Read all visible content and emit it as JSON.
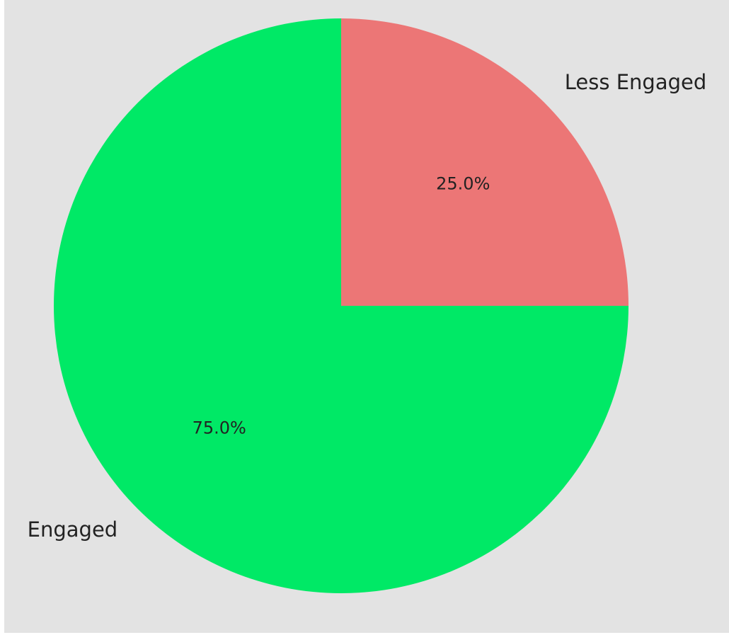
{
  "chart_data": {
    "type": "pie",
    "title": "",
    "start_angle_deg": 90,
    "direction": "clockwise",
    "slices": [
      {
        "label": "Less Engaged",
        "value": 25.0,
        "pct_label": "25.0%",
        "color": "#ec7676"
      },
      {
        "label": "Engaged",
        "value": 75.0,
        "pct_label": "75.0%",
        "color": "#00e966"
      }
    ],
    "background_color": "#e3e3e3"
  }
}
